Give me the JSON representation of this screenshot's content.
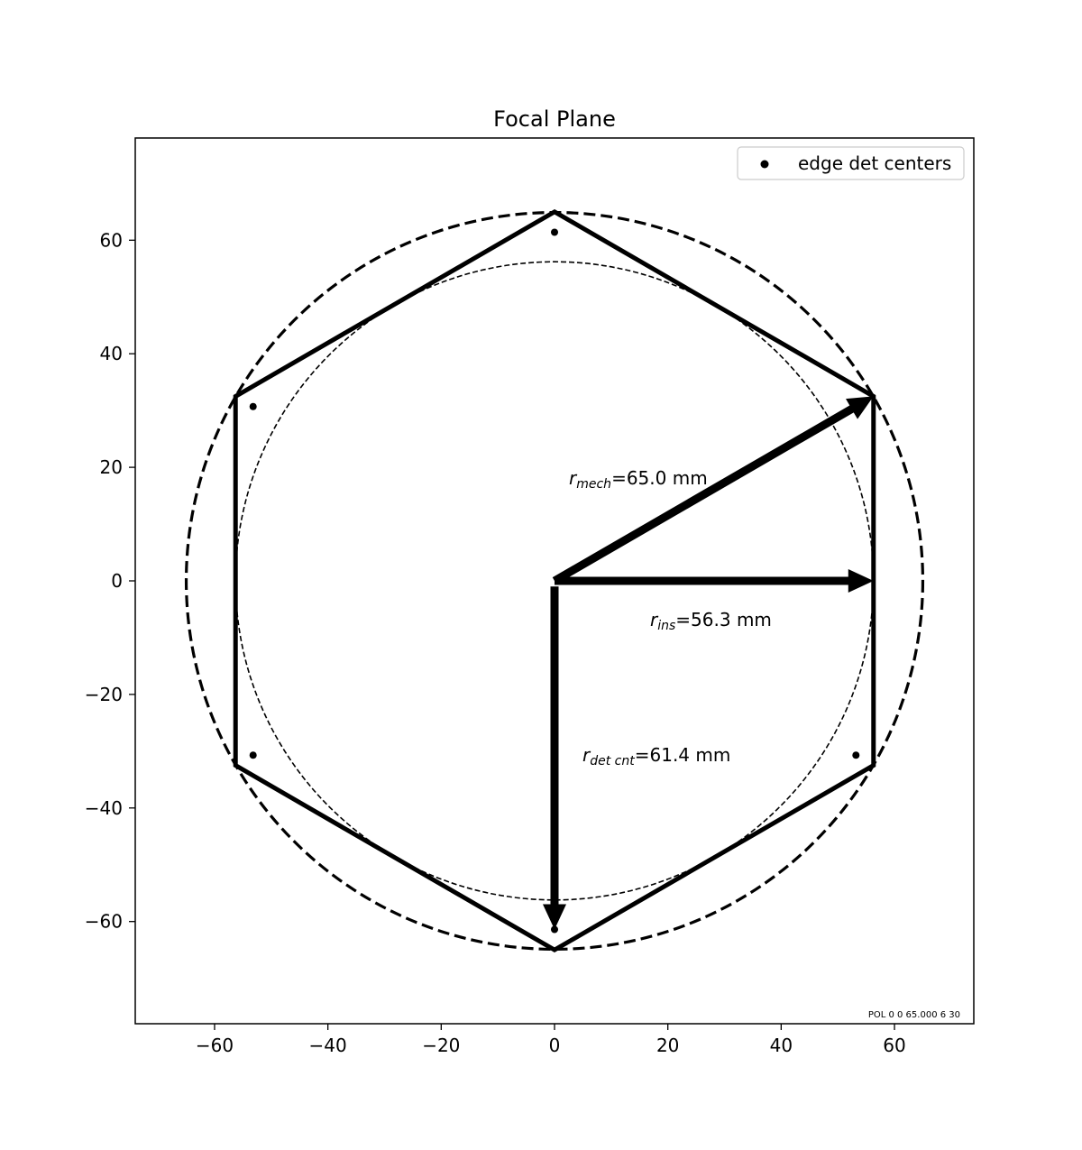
{
  "chart_data": {
    "type": "scatter",
    "title": "Focal Plane",
    "xlabel": "",
    "ylabel": "",
    "xlim": [
      -74,
      74
    ],
    "ylim": [
      -78,
      78
    ],
    "x_ticks": [
      -60,
      -40,
      -20,
      0,
      20,
      40,
      60
    ],
    "y_ticks": [
      -60,
      -40,
      -20,
      0,
      20,
      40,
      60
    ],
    "x_tick_labels": [
      "−60",
      "−40",
      "−20",
      "0",
      "20",
      "40",
      "60"
    ],
    "y_tick_labels": [
      "−60",
      "−40",
      "−20",
      "0",
      "20",
      "40",
      "60"
    ],
    "grid": false,
    "legend": {
      "position": "top-right",
      "entries": [
        "edge det centers"
      ]
    },
    "series": [
      {
        "name": "edge det centers",
        "points": [
          [
            0,
            61.4
          ],
          [
            -53.2,
            30.7
          ],
          [
            -53.2,
            -30.7
          ],
          [
            0,
            -61.4
          ],
          [
            53.2,
            -30.7
          ]
        ]
      }
    ],
    "hexagon_vertices": [
      [
        0,
        65
      ],
      [
        56.3,
        32.5
      ],
      [
        56.3,
        -32.5
      ],
      [
        0,
        -65
      ],
      [
        -56.3,
        -32.5
      ],
      [
        -56.3,
        32.5
      ]
    ],
    "outer_circle_radius": 65.0,
    "inner_circle_radius": 56.3,
    "arrows": [
      {
        "from": [
          0,
          0
        ],
        "to": [
          56.3,
          32.5
        ],
        "label": "mech",
        "value": "65.0 mm"
      },
      {
        "from": [
          0,
          0
        ],
        "to": [
          56.3,
          0
        ],
        "label": "ins",
        "value": "56.3 mm"
      },
      {
        "from": [
          0,
          -1
        ],
        "to": [
          0,
          -61.4
        ],
        "label": "det cnt",
        "value": "61.4 mm"
      }
    ],
    "annotations": {
      "r_mech": {
        "symbol": "r",
        "sub": "mech",
        "rest": "=65.0 mm"
      },
      "r_ins": {
        "symbol": "r",
        "sub": "ins",
        "rest": "=56.3 mm"
      },
      "r_det": {
        "symbol": "r",
        "sub": "det cnt",
        "rest": "=61.4 mm"
      }
    },
    "footer_note": "POL 0 0 65.000 6 30"
  }
}
